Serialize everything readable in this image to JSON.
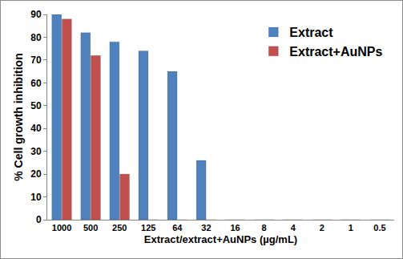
{
  "chart_data": {
    "type": "bar",
    "x_label": "Extract/extract+AuNPs (µg/mL)",
    "y_label": "% Cell growth inhibition",
    "categories": [
      "1000",
      "500",
      "250",
      "125",
      "64",
      "32",
      "16",
      "8",
      "4",
      "2",
      "1",
      "0.5"
    ],
    "series": [
      {
        "name": "Extract",
        "color": "#4f81bd",
        "values": [
          90,
          82,
          78,
          74,
          65,
          26,
          0,
          0,
          0,
          0,
          0,
          0
        ]
      },
      {
        "name": "Extract+AuNPs",
        "color": "#c0504d",
        "values": [
          88,
          72,
          20,
          0,
          0,
          0,
          0,
          0,
          0,
          0,
          0,
          0
        ]
      }
    ],
    "ylim": [
      0,
      90
    ],
    "yticks": [
      0,
      10,
      20,
      30,
      40,
      50,
      60,
      70,
      80,
      90
    ],
    "grid": false,
    "legend": "top right"
  }
}
